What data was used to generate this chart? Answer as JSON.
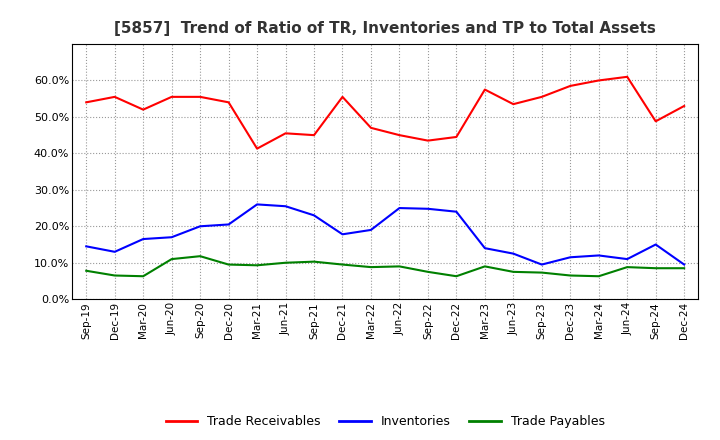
{
  "title": "[5857]  Trend of Ratio of TR, Inventories and TP to Total Assets",
  "x_labels": [
    "Sep-19",
    "Dec-19",
    "Mar-20",
    "Jun-20",
    "Sep-20",
    "Dec-20",
    "Mar-21",
    "Jun-21",
    "Sep-21",
    "Dec-21",
    "Mar-22",
    "Jun-22",
    "Sep-22",
    "Dec-22",
    "Mar-23",
    "Jun-23",
    "Sep-23",
    "Dec-23",
    "Mar-24",
    "Jun-24",
    "Sep-24",
    "Dec-24"
  ],
  "trade_receivables": [
    0.54,
    0.555,
    0.52,
    0.555,
    0.555,
    0.54,
    0.413,
    0.455,
    0.45,
    0.555,
    0.47,
    0.45,
    0.435,
    0.445,
    0.575,
    0.535,
    0.555,
    0.585,
    0.6,
    0.61,
    0.488,
    0.53
  ],
  "inventories": [
    0.145,
    0.13,
    0.165,
    0.17,
    0.2,
    0.205,
    0.26,
    0.255,
    0.23,
    0.178,
    0.19,
    0.25,
    0.248,
    0.24,
    0.14,
    0.125,
    0.095,
    0.115,
    0.12,
    0.11,
    0.15,
    0.095
  ],
  "trade_payables": [
    0.078,
    0.065,
    0.063,
    0.11,
    0.118,
    0.095,
    0.093,
    0.1,
    0.103,
    0.095,
    0.088,
    0.09,
    0.075,
    0.063,
    0.09,
    0.075,
    0.073,
    0.065,
    0.063,
    0.088,
    0.085,
    0.085
  ],
  "tr_color": "#FF0000",
  "inv_color": "#0000FF",
  "tp_color": "#008000",
  "ylim": [
    0.0,
    0.7
  ],
  "yticks": [
    0.0,
    0.1,
    0.2,
    0.3,
    0.4,
    0.5,
    0.6
  ],
  "legend_labels": [
    "Trade Receivables",
    "Inventories",
    "Trade Payables"
  ],
  "background_color": "#FFFFFF",
  "grid_color": "#999999"
}
